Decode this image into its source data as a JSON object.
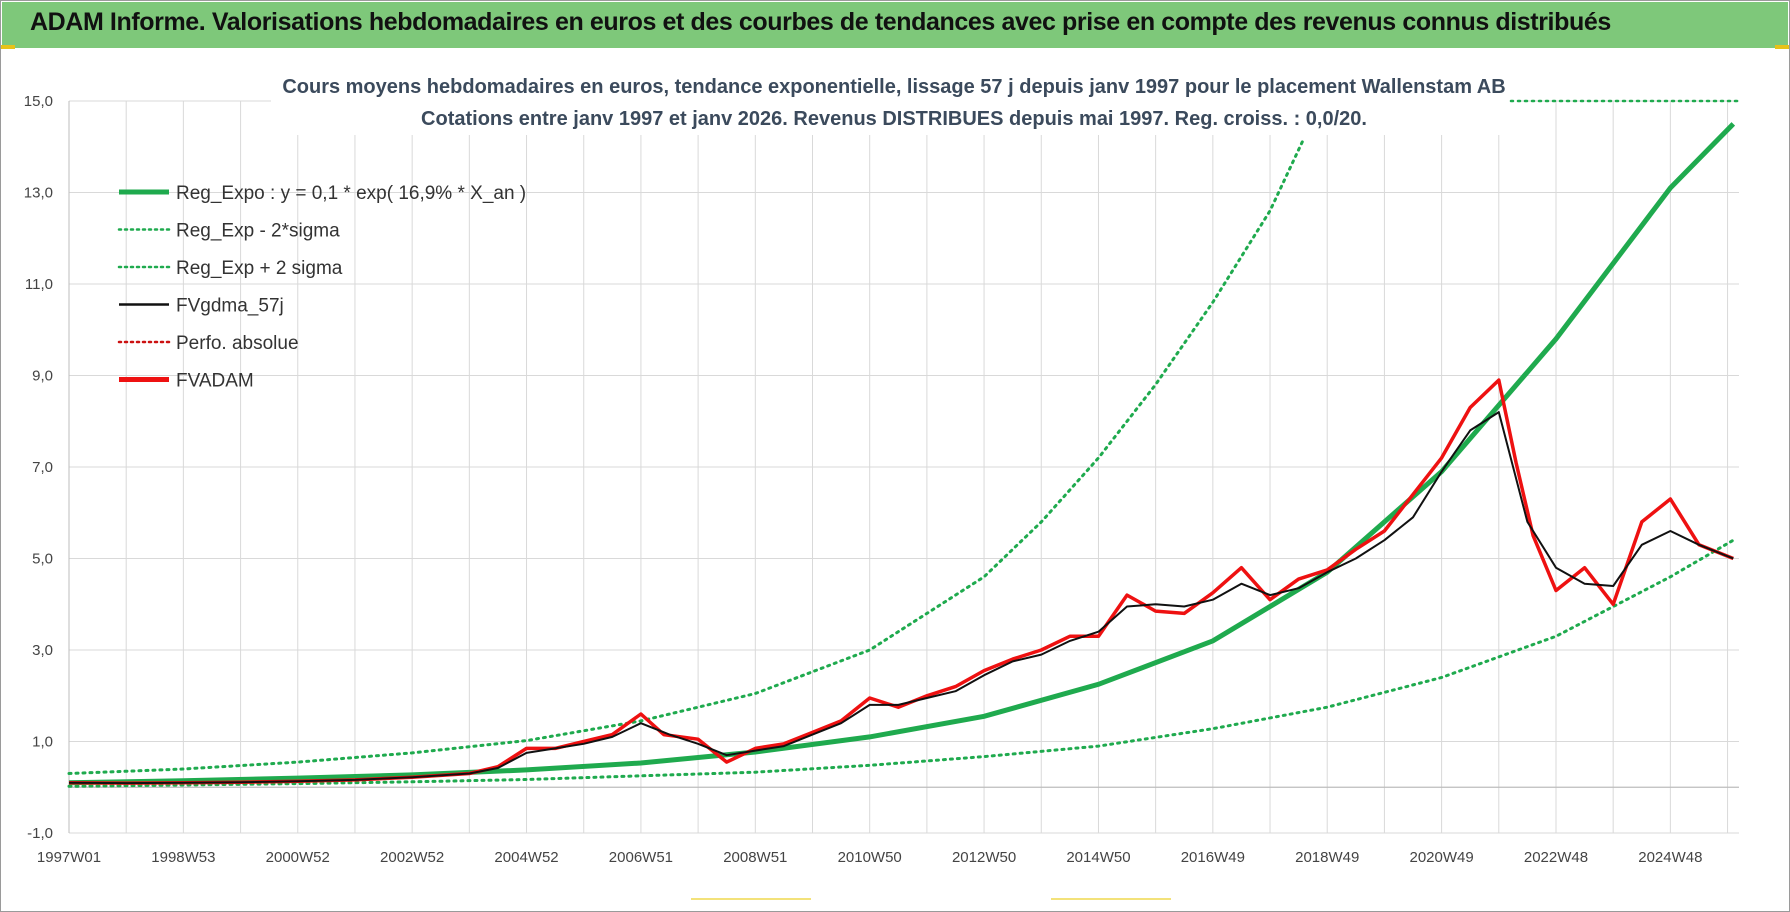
{
  "banner": {
    "title": "ADAM Informe. Valorisations hebdomadaires en euros et des courbes de tendances avec prise en compte des revenus connus distribués"
  },
  "colors": {
    "banner_bg": "#7ec87a",
    "reg_green": "#1faa4e",
    "fv_red": "#ee1111",
    "fv_black": "#111111",
    "grid": "#d9d9d9"
  },
  "chart_data": {
    "type": "line",
    "title": "Cours moyens hebdomadaires en euros, tendance exponentielle, lissage 57 j depuis janv 1997  pour le placement Wallenstam AB",
    "subtitle": "Cotations entre janv 1997 et janv 2026. Revenus DISTRIBUES depuis mai 1997. Reg. croiss. : 0,0/20.",
    "xlabel": "",
    "ylabel": "",
    "ylim": [
      -1,
      15
    ],
    "xlim": [
      1997.0,
      2026.2
    ],
    "y_ticks": [
      "-1,0",
      "1,0",
      "3,0",
      "5,0",
      "7,0",
      "9,0",
      "11,0",
      "13,0",
      "15,0"
    ],
    "y_tick_values": [
      -1,
      1,
      3,
      5,
      7,
      9,
      11,
      13,
      15
    ],
    "x_ticks": [
      "1997W01",
      "1998W53",
      "2000W52",
      "2002W52",
      "2004W52",
      "2006W51",
      "2008W51",
      "2010W50",
      "2012W50",
      "2014W50",
      "2016W49",
      "2018W49",
      "2020W49",
      "2022W48",
      "2024W48"
    ],
    "x_tick_values": [
      1997.0,
      1999.0,
      2001.0,
      2003.0,
      2005.0,
      2007.0,
      2009.0,
      2011.0,
      2013.0,
      2015.0,
      2017.0,
      2019.0,
      2021.0,
      2023.0,
      2025.0
    ],
    "legend_position": "top-left",
    "legend": [
      {
        "label": "Reg_Expo : y = 0,1 * exp( 16,9% *  X_an )",
        "style": "thick-solid",
        "color": "#1faa4e"
      },
      {
        "label": "Reg_Exp - 2*sigma",
        "style": "dotted",
        "color": "#1faa4e"
      },
      {
        "label": "Reg_Exp + 2 sigma",
        "style": "dotted",
        "color": "#1faa4e"
      },
      {
        "label": "FVgdma_57j",
        "style": "solid",
        "color": "#111111"
      },
      {
        "label": "Perfo. absolue",
        "style": "dotted",
        "color": "#cc1111"
      },
      {
        "label": "FVADAM",
        "style": "thick-solid",
        "color": "#ee1111"
      }
    ],
    "series": [
      {
        "name": "Reg_Expo",
        "x": [
          1997.0,
          1999.0,
          2001.0,
          2003.0,
          2005.0,
          2007.0,
          2009.0,
          2011.0,
          2013.0,
          2015.0,
          2017.0,
          2019.0,
          2021.0,
          2023.0,
          2025.0,
          2026.1
        ],
        "values": [
          0.1,
          0.14,
          0.2,
          0.27,
          0.38,
          0.53,
          0.77,
          1.1,
          1.55,
          2.25,
          3.2,
          4.7,
          6.9,
          9.8,
          13.1,
          14.5
        ]
      },
      {
        "name": "Reg_Exp - 2*sigma",
        "x": [
          1997.0,
          1999.0,
          2001.0,
          2003.0,
          2005.0,
          2007.0,
          2009.0,
          2011.0,
          2013.0,
          2015.0,
          2017.0,
          2019.0,
          2021.0,
          2023.0,
          2025.0,
          2026.1
        ],
        "values": [
          0.02,
          0.05,
          0.08,
          0.12,
          0.17,
          0.25,
          0.33,
          0.48,
          0.67,
          0.9,
          1.28,
          1.75,
          2.4,
          3.3,
          4.6,
          5.4
        ]
      },
      {
        "name": "Reg_Exp + 2 sigma",
        "x": [
          1997.0,
          1999.0,
          2001.0,
          2003.0,
          2005.0,
          2007.0,
          2009.0,
          2011.0,
          2013.0,
          2014.0,
          2015.0,
          2016.0,
          2017.0,
          2018.0,
          2018.6
        ],
        "values": [
          0.3,
          0.4,
          0.55,
          0.75,
          1.02,
          1.45,
          2.05,
          3.0,
          4.6,
          5.8,
          7.2,
          8.8,
          10.6,
          12.6,
          14.2
        ]
      },
      {
        "name": "FVgdma_57j",
        "x": [
          1997.0,
          1998.0,
          1999.0,
          2000.0,
          2001.0,
          2002.0,
          2003.0,
          2004.0,
          2004.5,
          2005.0,
          2005.5,
          2006.0,
          2006.5,
          2007.0,
          2007.5,
          2008.0,
          2008.5,
          2009.0,
          2009.5,
          2010.0,
          2010.5,
          2011.0,
          2011.5,
          2012.0,
          2012.5,
          2013.0,
          2013.5,
          2014.0,
          2014.5,
          2015.0,
          2015.5,
          2016.0,
          2016.5,
          2017.0,
          2017.5,
          2018.0,
          2018.5,
          2019.0,
          2019.5,
          2020.0,
          2020.5,
          2021.0,
          2021.5,
          2022.0,
          2022.5,
          2023.0,
          2023.5,
          2024.0,
          2024.5,
          2025.0,
          2025.5,
          2026.1
        ],
        "values": [
          0.1,
          0.09,
          0.1,
          0.11,
          0.13,
          0.16,
          0.22,
          0.3,
          0.42,
          0.75,
          0.85,
          0.95,
          1.1,
          1.4,
          1.15,
          0.95,
          0.7,
          0.8,
          0.9,
          1.15,
          1.4,
          1.8,
          1.8,
          1.95,
          2.1,
          2.45,
          2.75,
          2.9,
          3.2,
          3.4,
          3.95,
          4.0,
          3.95,
          4.1,
          4.45,
          4.2,
          4.35,
          4.7,
          5.0,
          5.4,
          5.9,
          6.9,
          7.8,
          8.2,
          5.8,
          4.8,
          4.45,
          4.4,
          5.3,
          5.6,
          5.3,
          5.0
        ]
      },
      {
        "name": "FVADAM",
        "x": [
          1997.0,
          1998.0,
          1999.0,
          2000.0,
          2001.0,
          2002.0,
          2003.0,
          2004.0,
          2004.5,
          2005.0,
          2005.5,
          2006.0,
          2006.5,
          2007.0,
          2007.4,
          2008.0,
          2008.5,
          2009.0,
          2009.5,
          2010.0,
          2010.5,
          2011.0,
          2011.5,
          2012.0,
          2012.5,
          2013.0,
          2013.5,
          2014.0,
          2014.5,
          2015.0,
          2015.5,
          2016.0,
          2016.5,
          2017.0,
          2017.5,
          2018.0,
          2018.5,
          2019.0,
          2019.5,
          2020.0,
          2020.5,
          2021.0,
          2021.5,
          2022.0,
          2022.3,
          2022.6,
          2023.0,
          2023.5,
          2024.0,
          2024.5,
          2025.0,
          2025.5,
          2026.1
        ],
        "values": [
          0.1,
          0.09,
          0.1,
          0.11,
          0.13,
          0.16,
          0.22,
          0.3,
          0.45,
          0.85,
          0.85,
          1.0,
          1.15,
          1.6,
          1.15,
          1.05,
          0.55,
          0.85,
          0.95,
          1.2,
          1.45,
          1.95,
          1.75,
          2.0,
          2.2,
          2.55,
          2.8,
          3.0,
          3.3,
          3.3,
          4.2,
          3.85,
          3.8,
          4.25,
          4.8,
          4.1,
          4.55,
          4.75,
          5.2,
          5.6,
          6.4,
          7.2,
          8.3,
          8.9,
          7.1,
          5.5,
          4.3,
          4.8,
          4.0,
          5.8,
          6.3,
          5.3,
          5.0
        ]
      }
    ]
  }
}
